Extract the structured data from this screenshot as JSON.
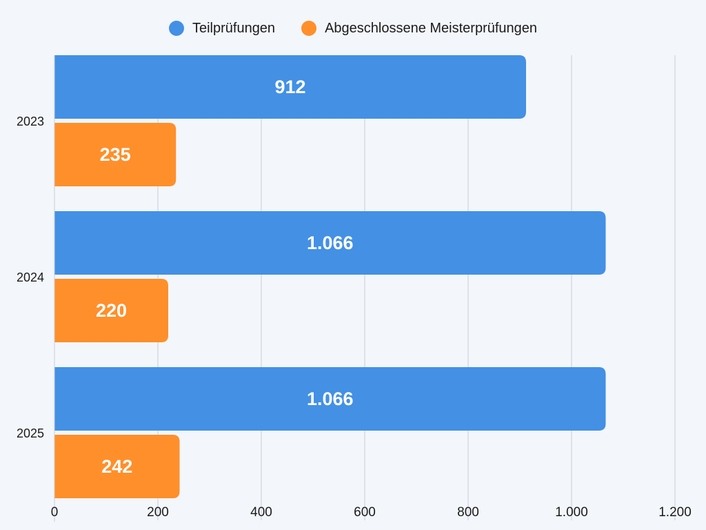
{
  "chart_data": {
    "type": "bar",
    "orientation": "horizontal",
    "categories": [
      "2023",
      "2024",
      "2025"
    ],
    "series": [
      {
        "name": "Teilprüfungen",
        "color": "#4390e5",
        "values": [
          912,
          1066,
          1066
        ],
        "labels": [
          "912",
          "1.066",
          "1.066"
        ]
      },
      {
        "name": "Abgeschlossene Meisterprüfungen",
        "color": "#ff8f2a",
        "values": [
          235,
          220,
          242
        ],
        "labels": [
          "235",
          "220",
          "242"
        ]
      }
    ],
    "xlim": [
      0,
      1200
    ],
    "xticks": [
      0,
      200,
      400,
      600,
      800,
      1000,
      1200
    ],
    "xtick_labels": [
      "0",
      "200",
      "400",
      "600",
      "800",
      "1.000",
      "1.200"
    ],
    "grid": true,
    "legend_position": "top-center",
    "title": "",
    "xlabel": "",
    "ylabel": ""
  }
}
